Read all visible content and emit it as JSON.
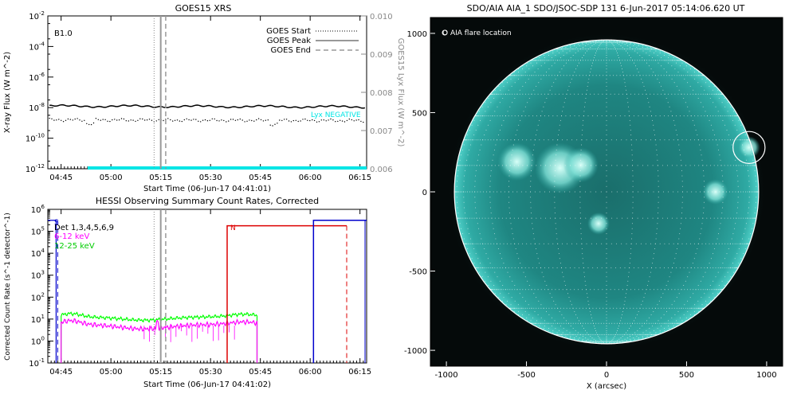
{
  "colors": {
    "goes_long": "#000000",
    "goes_short": "#000000",
    "lya": "#00e5e5",
    "hessi_3_6": "#000000",
    "hessi_6_12": "#ff00ff",
    "hessi_12_25": "#00ff00",
    "night_flag": "#0000cc",
    "saa_flag": "#dd0000",
    "aia_disk": "#1e8c88",
    "aia_bg": "#050a0a"
  },
  "chart_data": [
    {
      "type": "line",
      "title": "GOES15 XRS",
      "xlabel": "Start Time (06-Jun-17 04:41:01)",
      "ylabel": "X-ray Flux (W m^-2)",
      "ylabel_right": "GOES15 Lyx Flux (W m^-2)",
      "x_ticks": [
        "04:45",
        "05:00",
        "05:15",
        "05:30",
        "05:45",
        "06:00",
        "06:15"
      ],
      "x_tick_minutes": [
        45,
        60,
        75,
        90,
        105,
        120,
        135
      ],
      "xlim_minutes_after_04h": [
        41,
        137
      ],
      "y_scale": "log",
      "ylim_exp": [
        -12,
        -2
      ],
      "y_tick_labels": [
        "10^-2",
        "10^-4",
        "10^-6",
        "10^-8",
        "10^-10",
        "10^-12"
      ],
      "y_tick_exps": [
        -2,
        -4,
        -6,
        -8,
        -10,
        -12
      ],
      "y2lim": [
        0.006,
        0.01
      ],
      "y2_ticks": [
        "0.010",
        "0.009",
        "0.008",
        "0.007",
        "0.006"
      ],
      "y2_tick_values": [
        0.01,
        0.009,
        0.008,
        0.007,
        0.006
      ],
      "goes_class": "B1.0",
      "lya_note": "Lyx NEGATIVE",
      "legend_position": "top-right",
      "legend": [
        {
          "label": "GOES Start",
          "style": "dotted"
        },
        {
          "label": "GOES Peak",
          "style": "solid"
        },
        {
          "label": "GOES End",
          "style": "dashed"
        }
      ],
      "event_lines_minutes": {
        "start": 73,
        "peak": 75,
        "end": 76.5
      },
      "series": [
        {
          "values_log10": {
            "start": -7.9,
            "end": -7.95
          },
          "style": "solid"
        },
        {
          "values_log10": {
            "start": -8.8,
            "end": -8.85
          },
          "style": "dotted"
        },
        {
          "values": 0.006,
          "axis": "right"
        }
      ]
    },
    {
      "type": "line",
      "title": "HESSI Observing Summary Count Rates, Corrected",
      "xlabel": "Start Time (06-Jun-17 04:41:02)",
      "ylabel": "Corrected Count Rate (s^-1 detector^-1)",
      "x_ticks": [
        "04:45",
        "05:00",
        "05:15",
        "05:30",
        "05:45",
        "06:00",
        "06:15"
      ],
      "x_tick_minutes": [
        45,
        60,
        75,
        90,
        105,
        120,
        135
      ],
      "xlim_minutes_after_04h": [
        41,
        137
      ],
      "y_scale": "log",
      "ylim_exp": [
        -1,
        6
      ],
      "y_tick_labels": [
        "10^6",
        "10^5",
        "10^4",
        "10^3",
        "10^2",
        "10^1",
        "10^0",
        "10^-1"
      ],
      "y_tick_exps": [
        6,
        5,
        4,
        3,
        2,
        1,
        0,
        -1
      ],
      "legend_position": "top-left",
      "legend": [
        {
          "label": "Det 1,3,4,5,6,9",
          "color": "#000000"
        },
        {
          "label": "6-12 keV",
          "color": "#ff00ff"
        },
        {
          "label": "12-25 keV",
          "color": "#00ff00"
        }
      ],
      "flags": {
        "night_label": "S",
        "saa_label": "N"
      },
      "event_lines_minutes": {
        "start": 73,
        "peak": 75,
        "end": 76.5
      },
      "flag_intervals_minutes": {
        "night_end": 43.5,
        "saa_start": 95,
        "saa_end": 131,
        "night2_start": 121
      },
      "series": [
        {
          "name": "12-25 keV",
          "values_log10_level": 1.1,
          "x_range_minutes": [
            45,
            104
          ]
        },
        {
          "name": "6-12 keV",
          "values_log10_level": 0.75,
          "x_range_minutes": [
            45,
            104
          ]
        }
      ]
    },
    {
      "type": "image",
      "title": "SDO/AIA AIA_1 SDO/JSOC-SDP 131  6-Jun-2017 05:14:06.620 UT",
      "xlabel": "X (arcsec)",
      "annotation": "O AIA flare location",
      "x_ticks": [
        "-1000",
        "-500",
        "0",
        "500",
        "1000"
      ],
      "x_tick_values": [
        -1000,
        -500,
        0,
        500,
        1000
      ],
      "y_ticks": [
        "1000",
        "500",
        "0",
        "-500",
        "-1000"
      ],
      "y_tick_values": [
        1000,
        500,
        0,
        -500,
        -1000
      ],
      "xlim": [
        -1100,
        1100
      ],
      "ylim": [
        -1100,
        1100
      ],
      "solar_radius_arcsec": 950,
      "flare_location_arcsec": [
        890,
        280
      ],
      "flare_circle_radius_arcsec": 100
    }
  ]
}
